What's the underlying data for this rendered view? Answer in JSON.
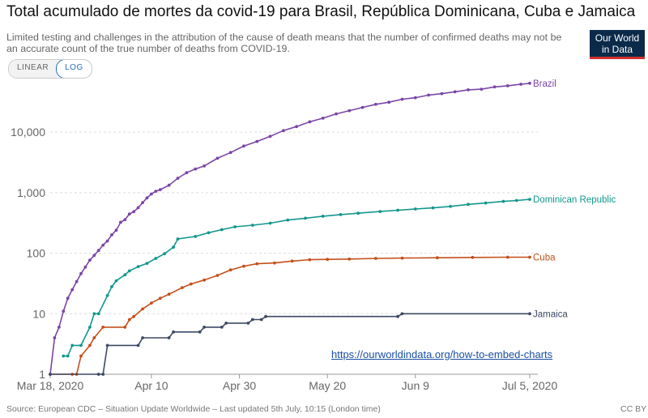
{
  "title": "Total acumulado de mortes da covid-19 para Brasil, República Dominicana, Cuba e Jamaica",
  "subtitle": "Limited testing and challenges in the attribution of the cause of death means that the number of confirmed deaths may not be an accurate count of the true number of deaths from COVID-19.",
  "logo": {
    "line1": "Our World",
    "line2": "in Data"
  },
  "toggle": {
    "linear": "LINEAR",
    "log": "LOG",
    "selected": "LOG"
  },
  "embed_link": "https://ourworldindata.org/how-to-embed-charts",
  "source": "Source: European CDC – Situation Update Worldwide – Last updated 5th July, 10:15 (London time)",
  "license": "CC BY",
  "colors": {
    "Brazil": "#7b45a8",
    "Dominican Republic": "#13978d",
    "Cuba": "#c4501b",
    "Jamaica": "#3d4a63"
  },
  "chart_data": {
    "type": "line",
    "yscale": "log",
    "ylim": [
      1,
      70000
    ],
    "xlim": [
      "2020-03-18",
      "2020-07-05"
    ],
    "grid": true,
    "y_ticks": [
      {
        "value": 1,
        "label": "1"
      },
      {
        "value": 10,
        "label": "10"
      },
      {
        "value": 100,
        "label": "100"
      },
      {
        "value": 1000,
        "label": "1,000"
      },
      {
        "value": 10000,
        "label": "10,000"
      }
    ],
    "x_ticks": [
      {
        "date": "2020-03-18",
        "label": "Mar 18, 2020"
      },
      {
        "date": "2020-04-10",
        "label": "Apr 10"
      },
      {
        "date": "2020-04-30",
        "label": "Apr 30"
      },
      {
        "date": "2020-05-20",
        "label": "May 20"
      },
      {
        "date": "2020-06-09",
        "label": "Jun 9"
      },
      {
        "date": "2020-07-05",
        "label": "Jul 5, 2020"
      }
    ],
    "series": [
      {
        "name": "Brazil",
        "points": [
          [
            "2020-03-18",
            1
          ],
          [
            "2020-03-19",
            4
          ],
          [
            "2020-03-20",
            6
          ],
          [
            "2020-03-21",
            11
          ],
          [
            "2020-03-22",
            18
          ],
          [
            "2020-03-23",
            25
          ],
          [
            "2020-03-24",
            34
          ],
          [
            "2020-03-25",
            46
          ],
          [
            "2020-03-26",
            59
          ],
          [
            "2020-03-27",
            77
          ],
          [
            "2020-03-28",
            92
          ],
          [
            "2020-03-29",
            111
          ],
          [
            "2020-03-30",
            136
          ],
          [
            "2020-03-31",
            159
          ],
          [
            "2020-04-01",
            201
          ],
          [
            "2020-04-02",
            240
          ],
          [
            "2020-04-03",
            324
          ],
          [
            "2020-04-04",
            359
          ],
          [
            "2020-04-05",
            445
          ],
          [
            "2020-04-06",
            486
          ],
          [
            "2020-04-07",
            564
          ],
          [
            "2020-04-08",
            686
          ],
          [
            "2020-04-09",
            819
          ],
          [
            "2020-04-10",
            950
          ],
          [
            "2020-04-11",
            1057
          ],
          [
            "2020-04-12",
            1124
          ],
          [
            "2020-04-14",
            1328
          ],
          [
            "2020-04-16",
            1736
          ],
          [
            "2020-04-18",
            2141
          ],
          [
            "2020-04-20",
            2462
          ],
          [
            "2020-04-22",
            2761
          ],
          [
            "2020-04-25",
            3704
          ],
          [
            "2020-04-28",
            4603
          ],
          [
            "2020-05-01",
            5901
          ],
          [
            "2020-05-04",
            7025
          ],
          [
            "2020-05-07",
            8536
          ],
          [
            "2020-05-10",
            10627
          ],
          [
            "2020-05-13",
            12400
          ],
          [
            "2020-05-16",
            14817
          ],
          [
            "2020-05-19",
            17000
          ],
          [
            "2020-05-22",
            20047
          ],
          [
            "2020-05-25",
            22666
          ],
          [
            "2020-05-28",
            25598
          ],
          [
            "2020-05-31",
            28834
          ],
          [
            "2020-06-03",
            31199
          ],
          [
            "2020-06-06",
            35026
          ],
          [
            "2020-06-09",
            37134
          ],
          [
            "2020-06-12",
            40919
          ],
          [
            "2020-06-15",
            43332
          ],
          [
            "2020-06-18",
            46510
          ],
          [
            "2020-06-21",
            49976
          ],
          [
            "2020-06-24",
            51271
          ],
          [
            "2020-06-27",
            55961
          ],
          [
            "2020-06-30",
            58314
          ],
          [
            "2020-07-03",
            61884
          ],
          [
            "2020-07-05",
            64265
          ]
        ]
      },
      {
        "name": "Dominican Republic",
        "points": [
          [
            "2020-03-21",
            2
          ],
          [
            "2020-03-22",
            2
          ],
          [
            "2020-03-23",
            3
          ],
          [
            "2020-03-25",
            3
          ],
          [
            "2020-03-27",
            6
          ],
          [
            "2020-03-28",
            10
          ],
          [
            "2020-03-29",
            10
          ],
          [
            "2020-03-31",
            20
          ],
          [
            "2020-04-01",
            28
          ],
          [
            "2020-04-02",
            35
          ],
          [
            "2020-04-04",
            44
          ],
          [
            "2020-04-05",
            51
          ],
          [
            "2020-04-07",
            60
          ],
          [
            "2020-04-09",
            68
          ],
          [
            "2020-04-11",
            82
          ],
          [
            "2020-04-13",
            98
          ],
          [
            "2020-04-15",
            126
          ],
          [
            "2020-04-16",
            172
          ],
          [
            "2020-04-20",
            189
          ],
          [
            "2020-04-23",
            218
          ],
          [
            "2020-04-26",
            245
          ],
          [
            "2020-04-29",
            273
          ],
          [
            "2020-05-03",
            290
          ],
          [
            "2020-05-07",
            313
          ],
          [
            "2020-05-11",
            354
          ],
          [
            "2020-05-15",
            378
          ],
          [
            "2020-05-19",
            409
          ],
          [
            "2020-05-23",
            434
          ],
          [
            "2020-05-27",
            458
          ],
          [
            "2020-06-01",
            488
          ],
          [
            "2020-06-05",
            514
          ],
          [
            "2020-06-09",
            537
          ],
          [
            "2020-06-13",
            562
          ],
          [
            "2020-06-17",
            594
          ],
          [
            "2020-06-21",
            640
          ],
          [
            "2020-06-25",
            676
          ],
          [
            "2020-06-29",
            718
          ],
          [
            "2020-07-02",
            742
          ],
          [
            "2020-07-05",
            775
          ]
        ]
      },
      {
        "name": "Cuba",
        "points": [
          [
            "2020-03-18",
            1
          ],
          [
            "2020-03-23",
            1
          ],
          [
            "2020-03-24",
            1
          ],
          [
            "2020-03-25",
            2
          ],
          [
            "2020-03-27",
            3
          ],
          [
            "2020-03-28",
            4
          ],
          [
            "2020-03-30",
            6
          ],
          [
            "2020-04-04",
            6
          ],
          [
            "2020-04-05",
            8
          ],
          [
            "2020-04-06",
            9
          ],
          [
            "2020-04-08",
            12
          ],
          [
            "2020-04-10",
            15
          ],
          [
            "2020-04-12",
            18
          ],
          [
            "2020-04-14",
            21
          ],
          [
            "2020-04-17",
            27
          ],
          [
            "2020-04-19",
            31
          ],
          [
            "2020-04-22",
            36
          ],
          [
            "2020-04-25",
            43
          ],
          [
            "2020-04-28",
            53
          ],
          [
            "2020-05-01",
            61
          ],
          [
            "2020-05-04",
            67
          ],
          [
            "2020-05-08",
            69
          ],
          [
            "2020-05-12",
            74
          ],
          [
            "2020-05-16",
            78
          ],
          [
            "2020-05-20",
            79
          ],
          [
            "2020-05-25",
            80
          ],
          [
            "2020-05-31",
            82
          ],
          [
            "2020-06-06",
            83
          ],
          [
            "2020-06-14",
            84
          ],
          [
            "2020-06-22",
            85
          ],
          [
            "2020-06-30",
            86
          ],
          [
            "2020-07-05",
            86
          ]
        ]
      },
      {
        "name": "Jamaica",
        "points": [
          [
            "2020-03-18",
            1
          ],
          [
            "2020-03-29",
            1
          ],
          [
            "2020-03-30",
            1
          ],
          [
            "2020-03-31",
            3
          ],
          [
            "2020-04-07",
            3
          ],
          [
            "2020-04-08",
            4
          ],
          [
            "2020-04-14",
            4
          ],
          [
            "2020-04-15",
            5
          ],
          [
            "2020-04-21",
            5
          ],
          [
            "2020-04-22",
            6
          ],
          [
            "2020-04-26",
            6
          ],
          [
            "2020-04-27",
            7
          ],
          [
            "2020-05-02",
            7
          ],
          [
            "2020-05-03",
            8
          ],
          [
            "2020-05-05",
            8
          ],
          [
            "2020-05-06",
            9
          ],
          [
            "2020-06-05",
            9
          ],
          [
            "2020-06-06",
            10
          ],
          [
            "2020-07-05",
            10
          ]
        ]
      }
    ]
  }
}
